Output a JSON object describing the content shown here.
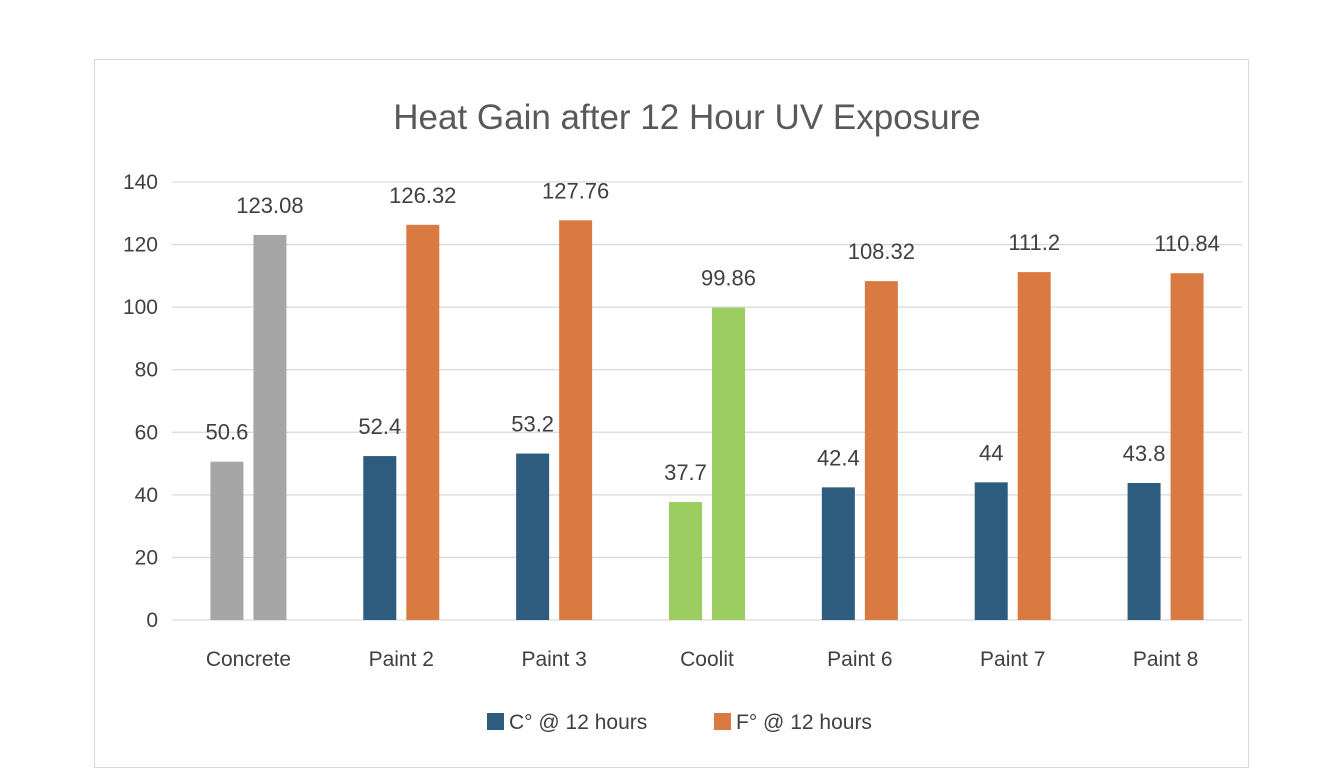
{
  "chart_data": {
    "type": "bar",
    "title": "Heat Gain after 12 Hour UV Exposure",
    "xlabel": "",
    "ylabel": "",
    "ylim": [
      0,
      140
    ],
    "yticks": [
      0,
      20,
      40,
      60,
      80,
      100,
      120,
      140
    ],
    "grid": true,
    "legend_position": "bottom",
    "categories": [
      "Concrete",
      "Paint 2",
      "Paint 3",
      "Coolit",
      "Paint 6",
      "Paint 7",
      "Paint 8"
    ],
    "series": [
      {
        "name": "C° @ 12 hours",
        "color": "#2e5c7f",
        "values": [
          50.6,
          52.4,
          53.2,
          37.7,
          42.4,
          44,
          43.8
        ],
        "labels": [
          "50.6",
          "52.4",
          "53.2",
          "37.7",
          "42.4",
          "44",
          "43.8"
        ],
        "point_colors": [
          "#a6a6a6",
          null,
          null,
          "#9ccd61",
          null,
          null,
          null
        ]
      },
      {
        "name": "F° @ 12 hours",
        "color": "#d97a42",
        "values": [
          123.08,
          126.32,
          127.76,
          99.86,
          108.32,
          111.2,
          110.84
        ],
        "labels": [
          "123.08",
          "126.32",
          "127.76",
          "99.86",
          "108.32",
          "111.2",
          "110.84"
        ],
        "point_colors": [
          "#a6a6a6",
          null,
          null,
          "#9ccd61",
          null,
          null,
          null
        ]
      }
    ]
  },
  "colors": {
    "gridline": "#d9d9d9",
    "axis_line": "#d9d9d9",
    "frame_border": "#d9d9d9"
  }
}
